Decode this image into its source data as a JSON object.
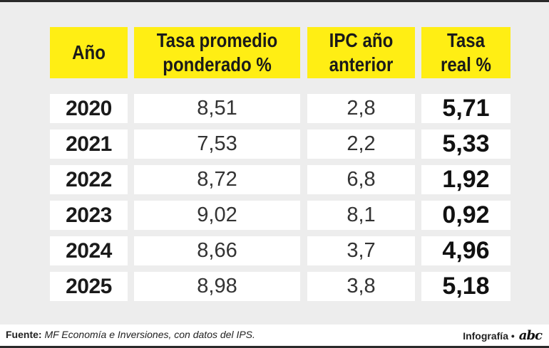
{
  "chart_data": {
    "type": "table",
    "columns": [
      "Año",
      "Tasa promedio ponderado %",
      "IPC año anterior",
      "Tasa real %"
    ],
    "rows": [
      {
        "year": "2020",
        "tasa": "8,51",
        "ipc": "2,8",
        "real": "5,71"
      },
      {
        "year": "2021",
        "tasa": "7,53",
        "ipc": "2,2",
        "real": "5,33"
      },
      {
        "year": "2022",
        "tasa": "8,72",
        "ipc": "6,8",
        "real": "1,92"
      },
      {
        "year": "2023",
        "tasa": "9,02",
        "ipc": "8,1",
        "real": "0,92"
      },
      {
        "year": "2024",
        "tasa": "8,66",
        "ipc": "3,7",
        "real": "4,96"
      },
      {
        "year": "2025",
        "tasa": "8,98",
        "ipc": "3,8",
        "real": "5,18"
      }
    ]
  },
  "header": {
    "col1": "Año",
    "col2_line1": "Tasa promedio",
    "col2_line2": "ponderado %",
    "col3_line1": "IPC año",
    "col3_line2": "anterior",
    "col4_line1": "Tasa",
    "col4_line2": "real %"
  },
  "footer": {
    "source_label": "Fuente:",
    "source_text": "MF Economía e Inversiones, con datos del IPS.",
    "credit": "Infografía •",
    "logo": "abc"
  },
  "colors": {
    "header_bg": "#ffee14",
    "panel_bg": "#ededed",
    "cell_bg": "#ffffff"
  }
}
